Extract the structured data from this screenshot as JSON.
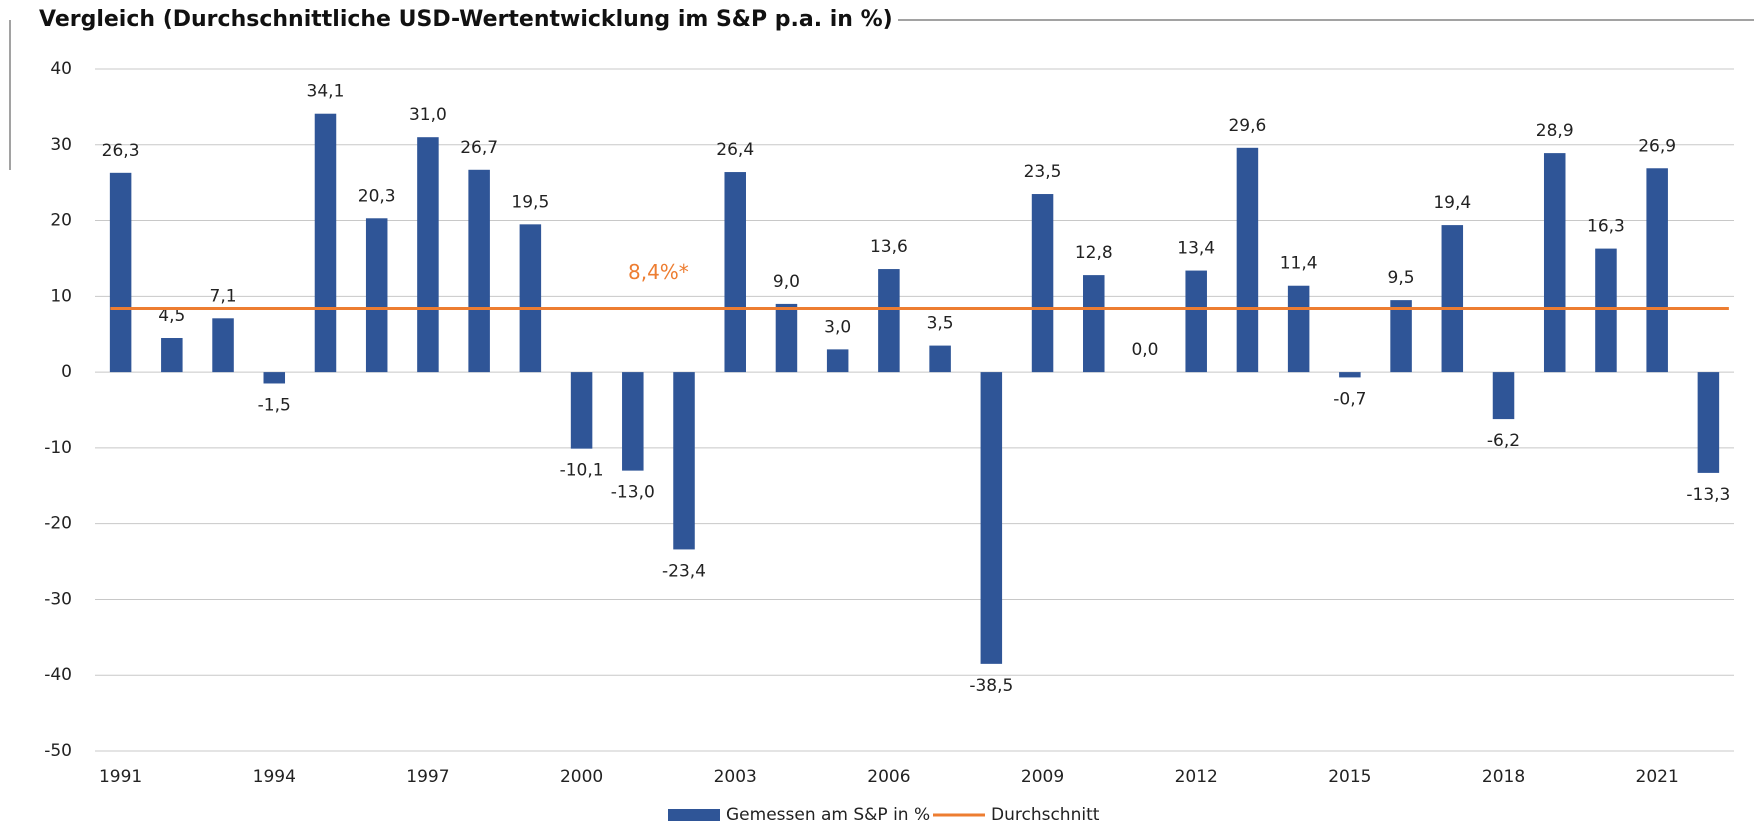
{
  "chart_data": {
    "type": "bar",
    "title": "Vergleich (Durchschnittliche USD-Wertentwicklung im S&P p.a. in %)",
    "categories": [
      "1991",
      null,
      null,
      "1994",
      null,
      null,
      "1997",
      null,
      null,
      "2000",
      null,
      null,
      "2003",
      null,
      null,
      "2006",
      null,
      null,
      "2009",
      null,
      null,
      "2012",
      null,
      null,
      "2015",
      null,
      null,
      "2018",
      null,
      null,
      "2021",
      null
    ],
    "series": [
      {
        "name": "Gemessen am S&P in %",
        "color": "#2f5597",
        "values": [
          26.3,
          4.5,
          7.1,
          -1.5,
          34.1,
          20.3,
          31.0,
          26.7,
          19.5,
          -10.1,
          -13.0,
          -23.4,
          26.4,
          9.0,
          3.0,
          13.6,
          3.5,
          -38.5,
          23.5,
          12.8,
          0.0,
          13.4,
          29.6,
          11.4,
          -0.7,
          9.5,
          19.4,
          -6.2,
          28.9,
          16.3,
          26.9,
          -13.3
        ],
        "value_labels": [
          "26,3",
          "4,5",
          "7,1",
          "-1,5",
          "34,1",
          "20,3",
          "31,0",
          "26,7",
          "19,5",
          "-10,1",
          "-13,0",
          "-23,4",
          "26,4",
          "9,0",
          "3,0",
          "13,6",
          "3,5",
          "-38,5",
          "23,5",
          "12,8",
          "0,0",
          "13,4",
          "29,6",
          "11,4",
          "-0,7",
          "9,5",
          "19,4",
          "-6,2",
          "28,9",
          "16,3",
          "26,9",
          "-13,3"
        ]
      }
    ],
    "reference_line": {
      "name": "Durchschnitt",
      "value": 8.4,
      "label": "8,4%*",
      "color": "#ed7d31"
    },
    "ylim": [
      -50,
      40
    ],
    "yticks": [
      -50,
      -40,
      -30,
      -20,
      -10,
      0,
      10,
      20,
      30,
      40
    ],
    "grid": true,
    "legend": "bottom"
  }
}
